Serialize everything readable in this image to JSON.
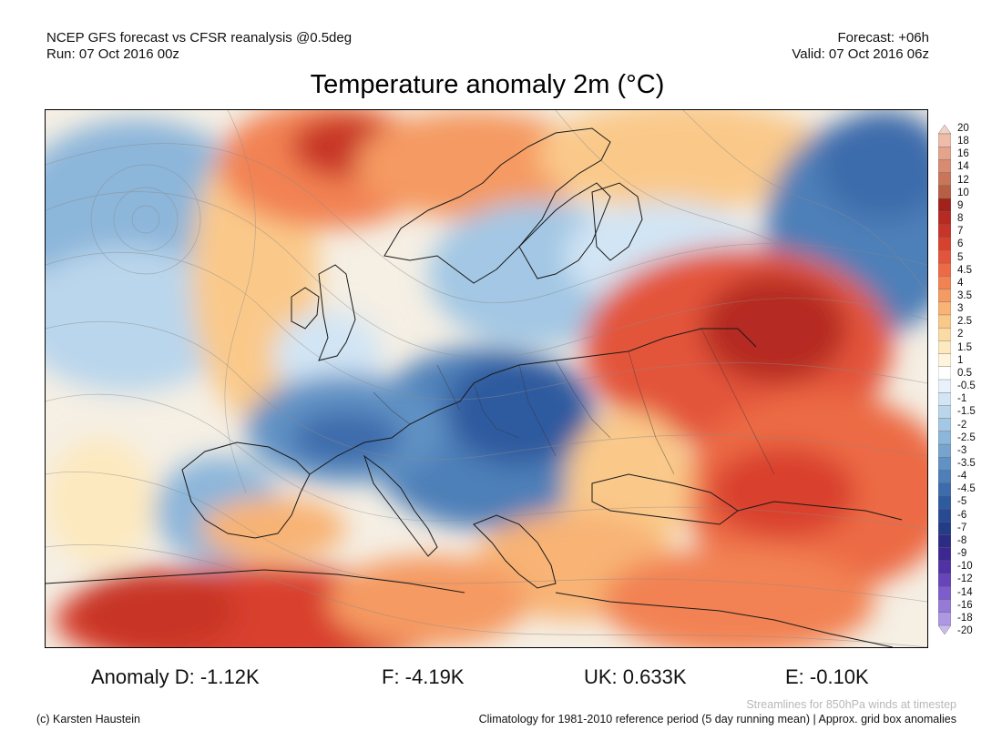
{
  "header": {
    "line1_left": "NCEP GFS forecast vs CFSR reanalysis @0.5deg",
    "line2_left": "Run: 07 Oct 2016 00z",
    "line1_right": "Forecast: +06h",
    "line2_right": "Valid: 07 Oct 2016 06z"
  },
  "title": "Temperature anomaly 2m (°C)",
  "colorbar": {
    "labels": [
      "20",
      "18",
      "16",
      "14",
      "12",
      "10",
      "9",
      "8",
      "7",
      "6",
      "5",
      "4.5",
      "4",
      "3.5",
      "3",
      "2.5",
      "2",
      "1.5",
      "1",
      "0.5",
      "-0.5",
      "-1",
      "-1.5",
      "-2",
      "-2.5",
      "-3",
      "-3.5",
      "-4",
      "-4.5",
      "-5",
      "-6",
      "-7",
      "-8",
      "-9",
      "-10",
      "-12",
      "-14",
      "-16",
      "-18",
      "-20"
    ],
    "colors": [
      "#f3d2c6",
      "#eebca8",
      "#e4a48b",
      "#d88b70",
      "#c97559",
      "#b75f45",
      "#a2221b",
      "#b52a22",
      "#c83428",
      "#d9412f",
      "#e3553a",
      "#ec6b45",
      "#f28252",
      "#f59a62",
      "#f8b375",
      "#fac98a",
      "#fbdba3",
      "#fde9bf",
      "#fff4dc",
      "#ffffff",
      "#e9f2fa",
      "#d2e5f4",
      "#bad6ec",
      "#a3c7e4",
      "#8cb6da",
      "#76a4cf",
      "#6192c4",
      "#4e7fb8",
      "#3d6cac",
      "#2e5a9f",
      "#274a92",
      "#243c88",
      "#2d2c84",
      "#3d2892",
      "#5032a6",
      "#6744ba",
      "#7d5ccb",
      "#957ad8",
      "#ad98e2",
      "#c8bbed"
    ]
  },
  "anomalies": {
    "d": "Anomaly D: -1.12K",
    "f": "F: -4.19K",
    "uk": "UK: 0.633K",
    "e": "E: -0.10K"
  },
  "footer": {
    "credit": "(c) Karsten Haustein",
    "streamlines_note": "Streamlines for 850hPa winds at timestep",
    "climatology_note": "Climatology for 1981-2010 reference period (5 day running mean) | Approx. grid box anomalies"
  }
}
